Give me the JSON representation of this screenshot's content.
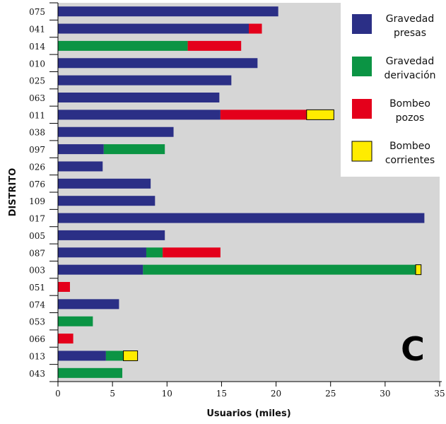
{
  "chart_data": {
    "type": "bar",
    "orientation": "horizontal",
    "stacked": true,
    "panel_label": "C",
    "xlabel": "Usuarios (miles)",
    "ylabel": "DISTRITO",
    "xlim": [
      0,
      35
    ],
    "xticks": [
      0,
      5,
      10,
      15,
      20,
      25,
      30,
      35
    ],
    "grid": false,
    "legend_position": "top-right",
    "categories": [
      "075",
      "041",
      "014",
      "010",
      "025",
      "063",
      "011",
      "038",
      "097",
      "026",
      "076",
      "109",
      "017",
      "005",
      "087",
      "003",
      "051",
      "074",
      "053",
      "066",
      "013",
      "043"
    ],
    "series": [
      {
        "name": "Gravedad presas",
        "color": "#2b2f86",
        "values": [
          20.2,
          17.5,
          0,
          18.3,
          15.9,
          14.8,
          14.9,
          10.6,
          4.2,
          4.1,
          8.5,
          8.9,
          33.6,
          9.8,
          8.1,
          7.8,
          0,
          5.6,
          0,
          0,
          4.4,
          0
        ]
      },
      {
        "name": "Gravedad derivación",
        "color": "#0b9444",
        "values": [
          0,
          0,
          11.9,
          0,
          0,
          0,
          0,
          0,
          5.6,
          0,
          0,
          0,
          0,
          0,
          1.5,
          25.0,
          0,
          0,
          3.2,
          0,
          1.6,
          5.9
        ]
      },
      {
        "name": "Bombeo pozos",
        "color": "#e4001b",
        "values": [
          0,
          1.2,
          4.9,
          0,
          0,
          0,
          7.9,
          0,
          0,
          0,
          0,
          0,
          0,
          0,
          5.3,
          0,
          1.1,
          0,
          0,
          1.4,
          0,
          0
        ]
      },
      {
        "name": "Bombeo corrientes",
        "color": "#ffec00",
        "values": [
          0,
          0,
          0,
          0,
          0,
          0,
          2.5,
          0,
          0,
          0,
          0,
          0,
          0,
          0,
          0,
          0.5,
          0,
          0,
          0,
          0,
          1.3,
          0
        ]
      }
    ],
    "legend": [
      {
        "line1": "Gravedad",
        "line2": "presas"
      },
      {
        "line1": "Gravedad",
        "line2": "derivación"
      },
      {
        "line1": "Bombeo",
        "line2": "pozos"
      },
      {
        "line1": "Bombeo",
        "line2": "corrientes"
      }
    ],
    "colors": {
      "plot_background": "#d6d6d6"
    }
  }
}
